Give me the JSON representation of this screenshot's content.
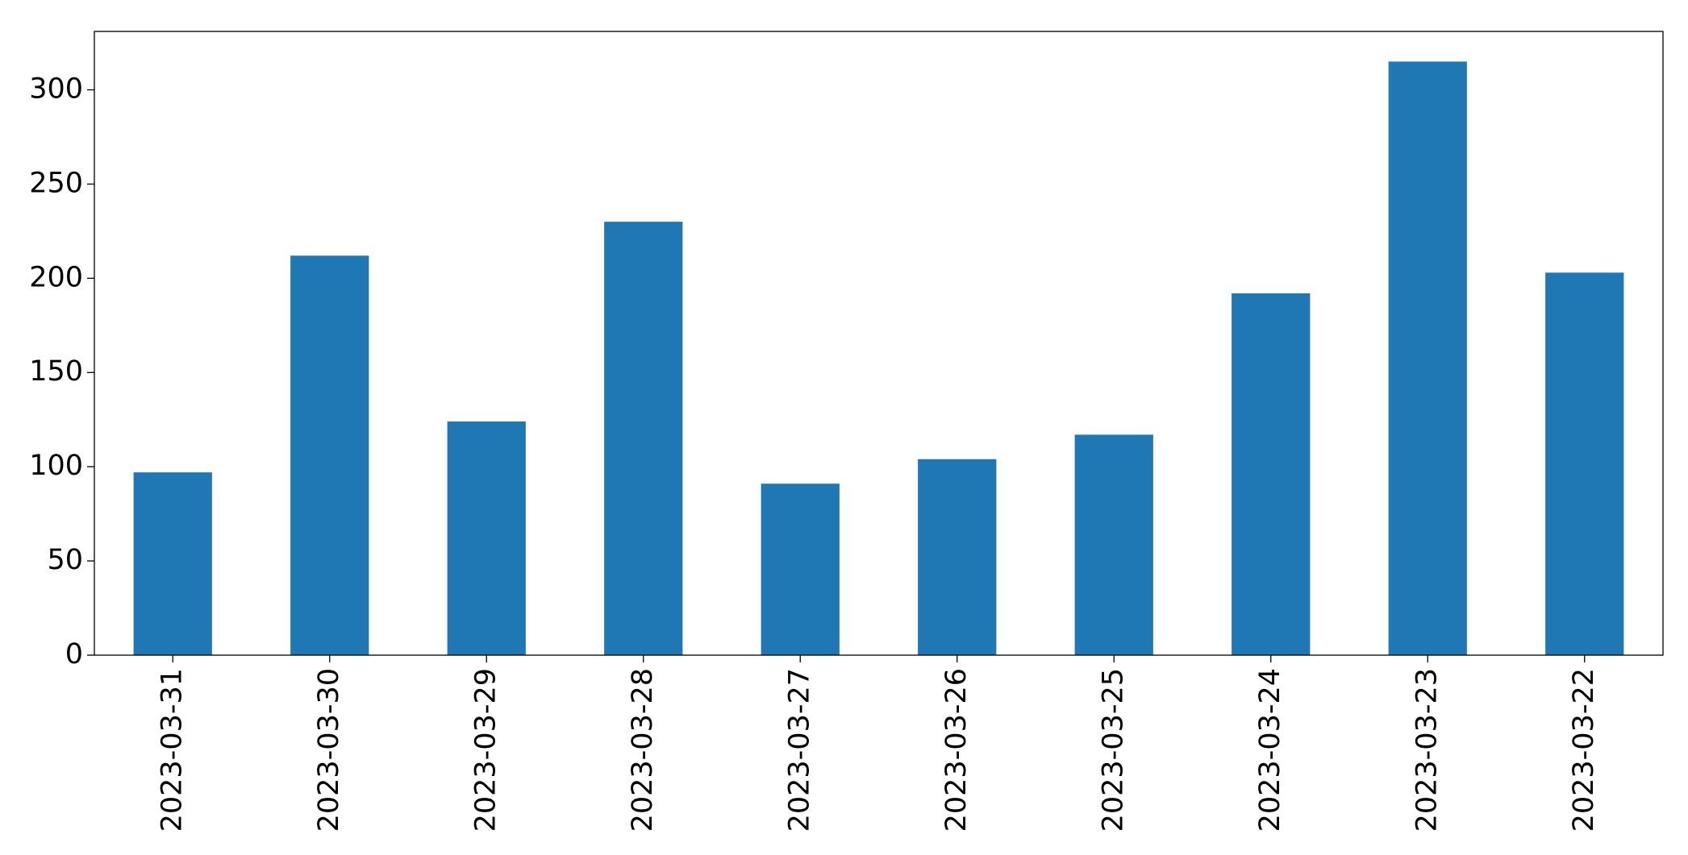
{
  "chart_data": {
    "type": "bar",
    "categories": [
      "2023-03-31",
      "2023-03-30",
      "2023-03-29",
      "2023-03-28",
      "2023-03-27",
      "2023-03-26",
      "2023-03-25",
      "2023-03-24",
      "2023-03-23",
      "2023-03-22"
    ],
    "values": [
      97,
      212,
      124,
      230,
      91,
      104,
      117,
      192,
      315,
      203
    ],
    "color": "#1f77b4",
    "ylim": [
      0,
      331
    ],
    "yticks": [
      0,
      50,
      100,
      150,
      200,
      250,
      300
    ],
    "grid": false
  }
}
